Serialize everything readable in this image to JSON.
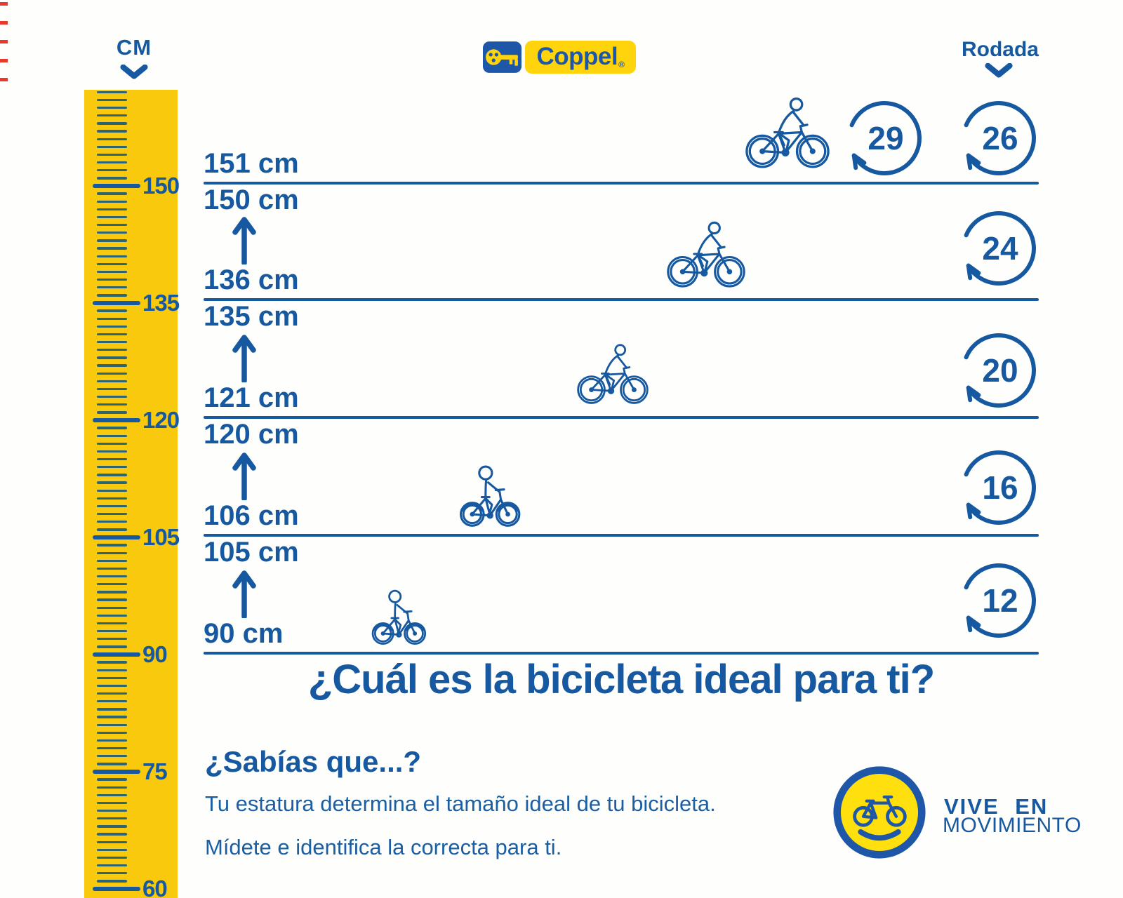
{
  "header": {
    "cm_label": "CM",
    "rodada_label": "Rodada",
    "brand_wordmark": "Coppel",
    "brand_registered": "®"
  },
  "ruler": {
    "major_labels": [
      "150",
      "135",
      "120",
      "105",
      "90",
      "75",
      "60"
    ]
  },
  "size_guide": {
    "rows": [
      {
        "top_label": "151 cm",
        "bottom_label": "",
        "wheels": [
          "29",
          "26"
        ]
      },
      {
        "top_label": "150 cm",
        "bottom_label": "136 cm",
        "wheels": [
          "24"
        ]
      },
      {
        "top_label": "135 cm",
        "bottom_label": "121 cm",
        "wheels": [
          "20"
        ]
      },
      {
        "top_label": "120 cm",
        "bottom_label": "106 cm",
        "wheels": [
          "16"
        ]
      },
      {
        "top_label": "105 cm",
        "bottom_label": "90 cm",
        "wheels": [
          "12"
        ]
      }
    ]
  },
  "question_heading": "¿Cuál es la bicicleta ideal para ti?",
  "fact": {
    "title": "¿Sabías que...?",
    "line1": "Tu estatura determina el tamaño ideal de tu bicicleta.",
    "line2": "Mídete e identifica la correcta para ti."
  },
  "vive_logo": {
    "line1": "VIVE EN",
    "line2": "MOVIMIENTO"
  },
  "colors": {
    "blue": "#1659a0",
    "ruler_yellow": "#f8c90c",
    "brand_yellow": "#ffd40d",
    "brand_square_blue": "#1f57a8",
    "accent_red": "#e8392c"
  }
}
